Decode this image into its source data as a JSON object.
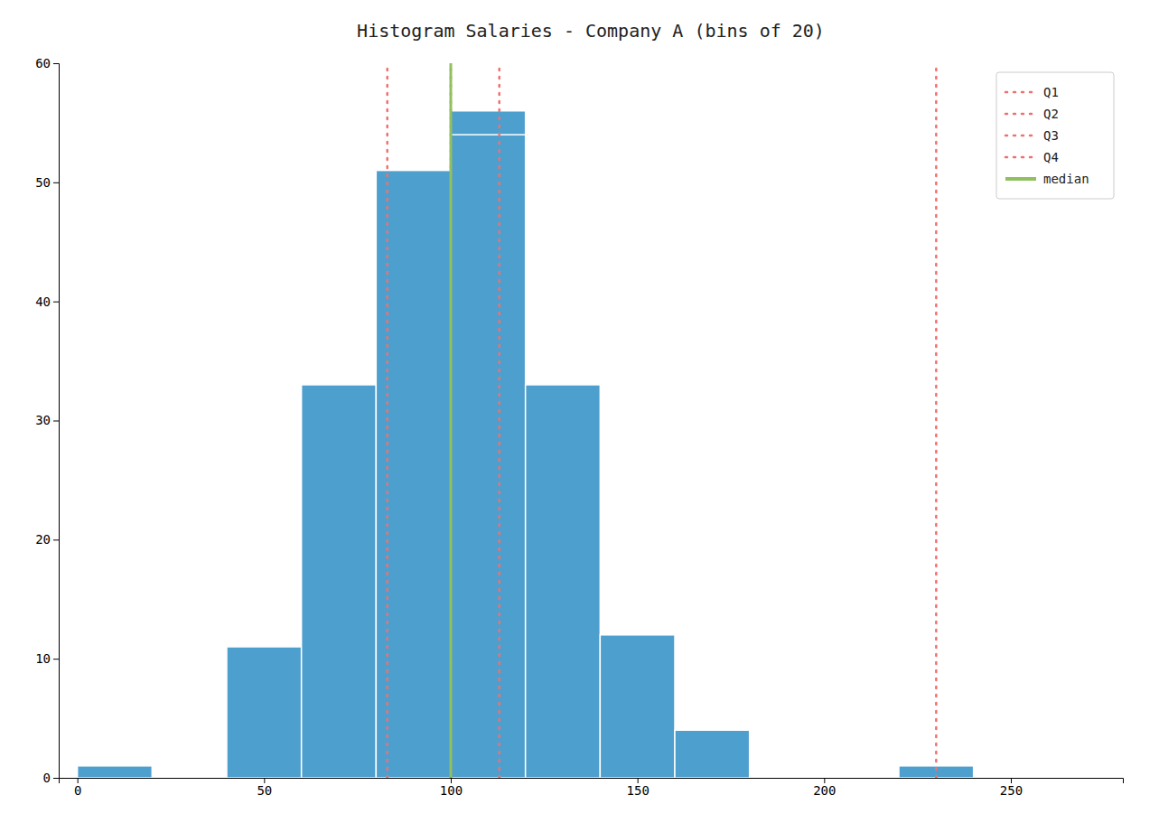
{
  "chart_data": {
    "type": "bar",
    "title": "Histogram Salaries - Company A (bins of 20)",
    "x": [
      0,
      40,
      60,
      80,
      100,
      100,
      120,
      140,
      160,
      220
    ],
    "widths": [
      20,
      20,
      20,
      20,
      20,
      20,
      20,
      20,
      20,
      20
    ],
    "values": [
      1,
      11,
      33,
      51,
      56,
      54,
      33,
      12,
      4,
      1
    ],
    "color": "#4d9fce",
    "vlines": [
      {
        "name": "Q1",
        "value": 83,
        "color": "#f07070",
        "line_style": "dotted"
      },
      {
        "name": "Q2",
        "value": 100,
        "color": "#f07070",
        "line_style": "dotted"
      },
      {
        "name": "Q3",
        "value": 113,
        "color": "#f07070",
        "line_style": "dotted"
      },
      {
        "name": "Q4",
        "value": 230,
        "color": "#f07070",
        "line_style": "dotted"
      },
      {
        "name": "median",
        "value": 100,
        "color": "#90c060",
        "line_style": "solid"
      }
    ],
    "xlim": [
      -5,
      280
    ],
    "ylim": [
      0,
      60
    ],
    "xticks": [
      0,
      50,
      100,
      150,
      200,
      250
    ],
    "yticks": [
      0,
      10,
      20,
      30,
      40,
      50,
      60
    ],
    "grid": false,
    "legend": "upper right"
  }
}
